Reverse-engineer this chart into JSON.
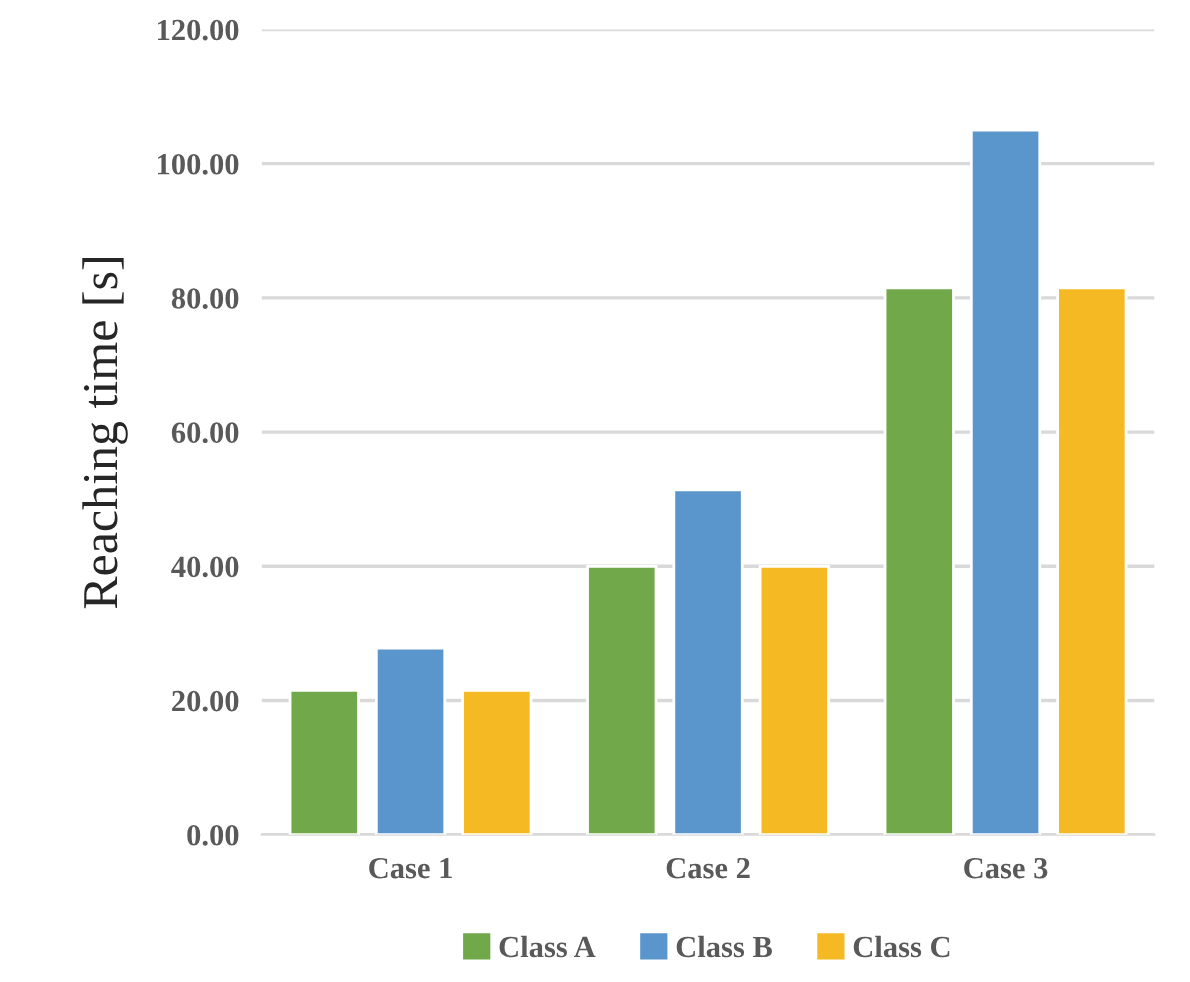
{
  "chart_data": {
    "type": "bar",
    "ylabel": "Reaching time [s]",
    "categories": [
      "Case 1",
      "Case 2",
      "Case 3"
    ],
    "series": [
      {
        "name": "Class A",
        "color": "#70a84a",
        "values": [
          21.5,
          40.0,
          81.5
        ]
      },
      {
        "name": "Class B",
        "color": "#5a96cb",
        "values": [
          27.8,
          51.4,
          105.0
        ]
      },
      {
        "name": "Class C",
        "color": "#f5ba23",
        "values": [
          21.5,
          40.0,
          81.5
        ]
      }
    ],
    "ylim": [
      0,
      120
    ],
    "yticks": [
      {
        "value": 0,
        "label": "0.00"
      },
      {
        "value": 20,
        "label": "20.00"
      },
      {
        "value": 40,
        "label": "40.00"
      },
      {
        "value": 60,
        "label": "60.00"
      },
      {
        "value": 80,
        "label": "80.00"
      },
      {
        "value": 100,
        "label": "100.00"
      },
      {
        "value": 120,
        "label": "120.00"
      }
    ],
    "grid": "y",
    "legend": "bottom"
  }
}
